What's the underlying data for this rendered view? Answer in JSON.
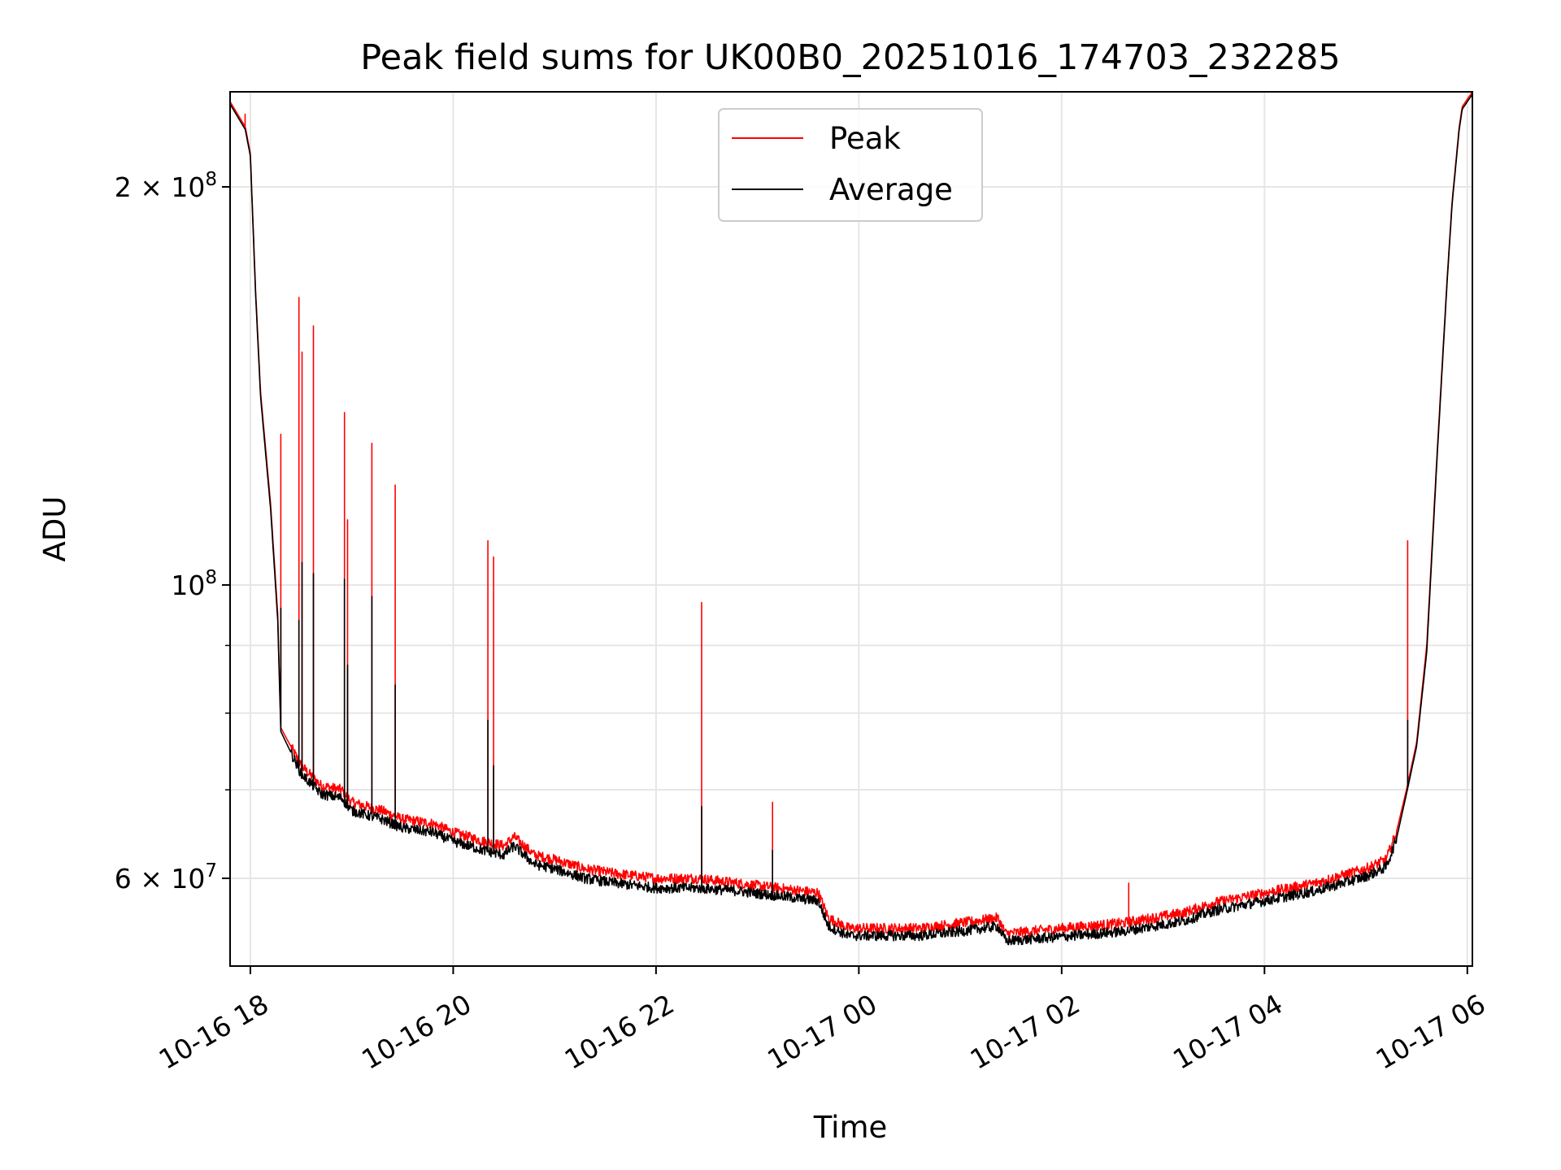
{
  "chart_data": {
    "type": "line",
    "title": "Peak field sums for UK00B0_20251016_174703_232285",
    "xlabel": "Time",
    "ylabel": "ADU",
    "yscale": "log",
    "ylim": [
      51500000,
      236000000
    ],
    "xlim_hours": [
      17.8,
      30.05
    ],
    "grid": true,
    "legend_position": "upper-center",
    "x_ticks": [
      {
        "hour": 18,
        "label": "10-16 18"
      },
      {
        "hour": 20,
        "label": "10-16 20"
      },
      {
        "hour": 22,
        "label": "10-16 22"
      },
      {
        "hour": 24,
        "label": "10-17 00"
      },
      {
        "hour": 26,
        "label": "10-17 02"
      },
      {
        "hour": 28,
        "label": "10-17 04"
      },
      {
        "hour": 30,
        "label": "10-17 06"
      }
    ],
    "y_ticks_major": [
      {
        "value": 60000000,
        "label": "6 × 10⁷",
        "mant": "6",
        "exp": "7"
      },
      {
        "value": 100000000,
        "label": "10⁸",
        "mant": "",
        "exp": "8"
      },
      {
        "value": 200000000,
        "label": "2 × 10⁸",
        "mant": "2",
        "exp": "8"
      }
    ],
    "y_ticks_minor": [
      70000000,
      80000000,
      90000000
    ],
    "series": [
      {
        "name": "Peak",
        "color": "#ff0000",
        "points": [
          [
            17.8,
            232000000
          ],
          [
            17.95,
            222000000
          ],
          [
            18.0,
            212000000
          ],
          [
            18.05,
            168000000
          ],
          [
            18.1,
            140000000
          ],
          [
            18.2,
            115000000
          ],
          [
            18.27,
            95000000
          ],
          [
            18.3,
            78000000
          ],
          [
            18.5,
            73000000
          ],
          [
            18.7,
            70500000
          ],
          [
            18.9,
            70000000
          ],
          [
            19.0,
            68500000
          ],
          [
            19.3,
            67500000
          ],
          [
            19.5,
            66500000
          ],
          [
            19.8,
            66000000
          ],
          [
            20.0,
            65000000
          ],
          [
            20.3,
            64000000
          ],
          [
            20.5,
            63500000
          ],
          [
            20.6,
            64500000
          ],
          [
            20.8,
            62500000
          ],
          [
            21.0,
            62000000
          ],
          [
            21.3,
            61000000
          ],
          [
            21.6,
            60500000
          ],
          [
            22.0,
            60000000
          ],
          [
            22.4,
            60000000
          ],
          [
            22.8,
            59500000
          ],
          [
            23.2,
            59000000
          ],
          [
            23.6,
            58500000
          ],
          [
            23.7,
            56000000
          ],
          [
            23.9,
            55000000
          ],
          [
            24.2,
            55000000
          ],
          [
            24.6,
            55000000
          ],
          [
            25.0,
            55500000
          ],
          [
            25.37,
            56000000
          ],
          [
            25.45,
            54500000
          ],
          [
            26.0,
            55000000
          ],
          [
            26.6,
            55500000
          ],
          [
            27.2,
            56500000
          ],
          [
            27.5,
            57500000
          ],
          [
            28.0,
            58500000
          ],
          [
            28.5,
            59500000
          ],
          [
            29.0,
            61000000
          ],
          [
            29.2,
            62000000
          ],
          [
            29.3,
            65000000
          ],
          [
            29.4,
            70000000
          ],
          [
            29.5,
            76000000
          ],
          [
            29.6,
            90000000
          ],
          [
            29.7,
            125000000
          ],
          [
            29.8,
            170000000
          ],
          [
            29.85,
            195000000
          ],
          [
            29.92,
            222000000
          ],
          [
            29.95,
            230000000
          ],
          [
            30.05,
            236000000
          ]
        ],
        "spikes": [
          [
            17.95,
            227000000
          ],
          [
            18.3,
            130000000
          ],
          [
            18.48,
            165000000
          ],
          [
            18.51,
            150000000
          ],
          [
            18.62,
            157000000
          ],
          [
            18.93,
            135000000
          ],
          [
            18.96,
            112000000
          ],
          [
            19.2,
            128000000
          ],
          [
            19.43,
            119000000
          ],
          [
            20.34,
            108000000
          ],
          [
            20.4,
            105000000
          ],
          [
            22.45,
            97000000
          ],
          [
            23.15,
            68500000
          ],
          [
            26.66,
            59500000
          ],
          [
            29.41,
            108000000
          ]
        ]
      },
      {
        "name": "Average",
        "color": "#000000",
        "points": [
          [
            17.8,
            231000000
          ],
          [
            17.95,
            221000000
          ],
          [
            18.0,
            211000000
          ],
          [
            18.05,
            167000000
          ],
          [
            18.1,
            139000000
          ],
          [
            18.2,
            114000000
          ],
          [
            18.27,
            94000000
          ],
          [
            18.3,
            77500000
          ],
          [
            18.5,
            72000000
          ],
          [
            18.7,
            69500000
          ],
          [
            18.9,
            69000000
          ],
          [
            19.0,
            67500000
          ],
          [
            19.3,
            66500000
          ],
          [
            19.5,
            65500000
          ],
          [
            19.8,
            65000000
          ],
          [
            20.0,
            64000000
          ],
          [
            20.3,
            63000000
          ],
          [
            20.5,
            62500000
          ],
          [
            20.6,
            63500000
          ],
          [
            20.8,
            61500000
          ],
          [
            21.0,
            61000000
          ],
          [
            21.3,
            60000000
          ],
          [
            21.6,
            59500000
          ],
          [
            22.0,
            59000000
          ],
          [
            22.4,
            59000000
          ],
          [
            22.8,
            58700000
          ],
          [
            23.2,
            58200000
          ],
          [
            23.6,
            57700000
          ],
          [
            23.7,
            55200000
          ],
          [
            23.9,
            54300000
          ],
          [
            24.2,
            54300000
          ],
          [
            24.6,
            54300000
          ],
          [
            25.0,
            54700000
          ],
          [
            25.37,
            55200000
          ],
          [
            25.45,
            53800000
          ],
          [
            26.0,
            54200000
          ],
          [
            26.6,
            54700000
          ],
          [
            27.2,
            55700000
          ],
          [
            27.5,
            56700000
          ],
          [
            28.0,
            57700000
          ],
          [
            28.5,
            58700000
          ],
          [
            29.0,
            60200000
          ],
          [
            29.2,
            61200000
          ],
          [
            29.3,
            64200000
          ],
          [
            29.4,
            69500000
          ],
          [
            29.5,
            75500000
          ],
          [
            29.6,
            89000000
          ],
          [
            29.7,
            124000000
          ],
          [
            29.8,
            169000000
          ],
          [
            29.85,
            194000000
          ],
          [
            29.92,
            221000000
          ],
          [
            29.95,
            229000000
          ],
          [
            30.05,
            235000000
          ]
        ],
        "spikes": [
          [
            18.3,
            96000000
          ],
          [
            18.48,
            94000000
          ],
          [
            18.51,
            104000000
          ],
          [
            18.62,
            102000000
          ],
          [
            18.93,
            101000000
          ],
          [
            18.96,
            87000000
          ],
          [
            19.2,
            98000000
          ],
          [
            19.43,
            84000000
          ],
          [
            20.34,
            79000000
          ],
          [
            20.4,
            73000000
          ],
          [
            22.45,
            68000000
          ],
          [
            23.15,
            63000000
          ],
          [
            29.41,
            79000000
          ]
        ]
      }
    ]
  }
}
